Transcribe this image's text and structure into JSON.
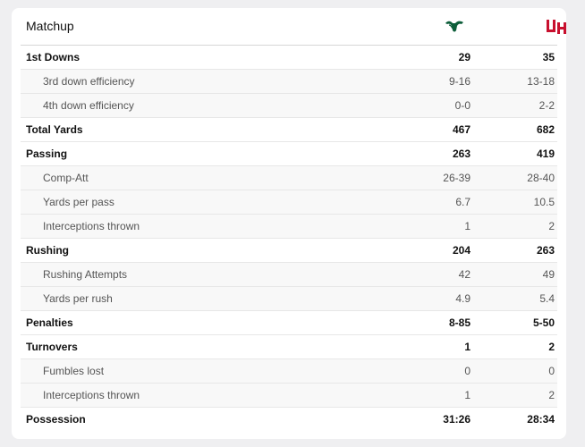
{
  "header": {
    "title": "Matchup",
    "team1_logo": "usf-bull-logo",
    "team2_logo": "uh-logo",
    "team1_color": "#0d5e3a",
    "team2_color": "#c8102e"
  },
  "stats": [
    {
      "label": "1st Downs",
      "v1": "29",
      "v2": "35",
      "level": "main"
    },
    {
      "label": "3rd down efficiency",
      "v1": "9-16",
      "v2": "13-18",
      "level": "sub"
    },
    {
      "label": "4th down efficiency",
      "v1": "0-0",
      "v2": "2-2",
      "level": "sub"
    },
    {
      "label": "Total Yards",
      "v1": "467",
      "v2": "682",
      "level": "main"
    },
    {
      "label": "Passing",
      "v1": "263",
      "v2": "419",
      "level": "main"
    },
    {
      "label": "Comp-Att",
      "v1": "26-39",
      "v2": "28-40",
      "level": "sub"
    },
    {
      "label": "Yards per pass",
      "v1": "6.7",
      "v2": "10.5",
      "level": "sub"
    },
    {
      "label": "Interceptions thrown",
      "v1": "1",
      "v2": "2",
      "level": "sub"
    },
    {
      "label": "Rushing",
      "v1": "204",
      "v2": "263",
      "level": "main"
    },
    {
      "label": "Rushing Attempts",
      "v1": "42",
      "v2": "49",
      "level": "sub"
    },
    {
      "label": "Yards per rush",
      "v1": "4.9",
      "v2": "5.4",
      "level": "sub"
    },
    {
      "label": "Penalties",
      "v1": "8-85",
      "v2": "5-50",
      "level": "main"
    },
    {
      "label": "Turnovers",
      "v1": "1",
      "v2": "2",
      "level": "main"
    },
    {
      "label": "Fumbles lost",
      "v1": "0",
      "v2": "0",
      "level": "sub"
    },
    {
      "label": "Interceptions thrown",
      "v1": "1",
      "v2": "2",
      "level": "sub"
    },
    {
      "label": "Possession",
      "v1": "31:26",
      "v2": "28:34",
      "level": "main"
    }
  ]
}
